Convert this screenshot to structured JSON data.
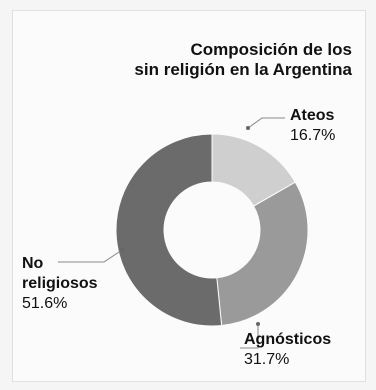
{
  "chart_data": {
    "type": "pie",
    "title_line1": "Composición de los",
    "title_line2": "sin religión en la Argentina",
    "slices": [
      {
        "label": "Ateos",
        "value": 16.7,
        "value_text": "16.7%",
        "color": "#cfcfcf"
      },
      {
        "label": "Agnósticos",
        "value": 31.7,
        "value_text": "31.7%",
        "color": "#9a9a9a"
      },
      {
        "label": "No religiosos",
        "label_line1": "No",
        "label_line2": "religiosos",
        "value": 51.6,
        "value_text": "51.6%",
        "color": "#6b6b6b"
      }
    ]
  }
}
